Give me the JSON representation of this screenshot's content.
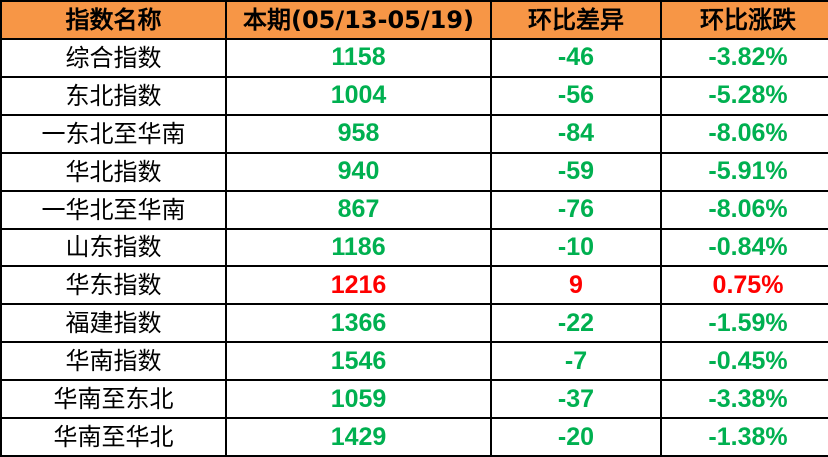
{
  "colors": {
    "header_bg": "#F79646",
    "down": "#00B050",
    "up": "#FF0000"
  },
  "headers": [
    "指数名称",
    "本期(05/13-05/19)",
    "环比差异",
    "环比涨跌"
  ],
  "rows": [
    {
      "name": "综合指数",
      "value": "1158",
      "diff": "-46",
      "pct": "-3.82%",
      "trend": "down"
    },
    {
      "name": "东北指数",
      "value": "1004",
      "diff": "-56",
      "pct": "-5.28%",
      "trend": "down"
    },
    {
      "name": "一东北至华南",
      "value": "958",
      "diff": "-84",
      "pct": "-8.06%",
      "trend": "down"
    },
    {
      "name": "华北指数",
      "value": "940",
      "diff": "-59",
      "pct": "-5.91%",
      "trend": "down"
    },
    {
      "name": "一华北至华南",
      "value": "867",
      "diff": "-76",
      "pct": "-8.06%",
      "trend": "down"
    },
    {
      "name": "山东指数",
      "value": "1186",
      "diff": "-10",
      "pct": "-0.84%",
      "trend": "down"
    },
    {
      "name": "华东指数",
      "value": "1216",
      "diff": "9",
      "pct": "0.75%",
      "trend": "up"
    },
    {
      "name": "福建指数",
      "value": "1366",
      "diff": "-22",
      "pct": "-1.59%",
      "trend": "down"
    },
    {
      "name": "华南指数",
      "value": "1546",
      "diff": "-7",
      "pct": "-0.45%",
      "trend": "down"
    },
    {
      "name": "华南至东北",
      "value": "1059",
      "diff": "-37",
      "pct": "-3.38%",
      "trend": "down"
    },
    {
      "name": "华南至华北",
      "value": "1429",
      "diff": "-20",
      "pct": "-1.38%",
      "trend": "down"
    }
  ]
}
